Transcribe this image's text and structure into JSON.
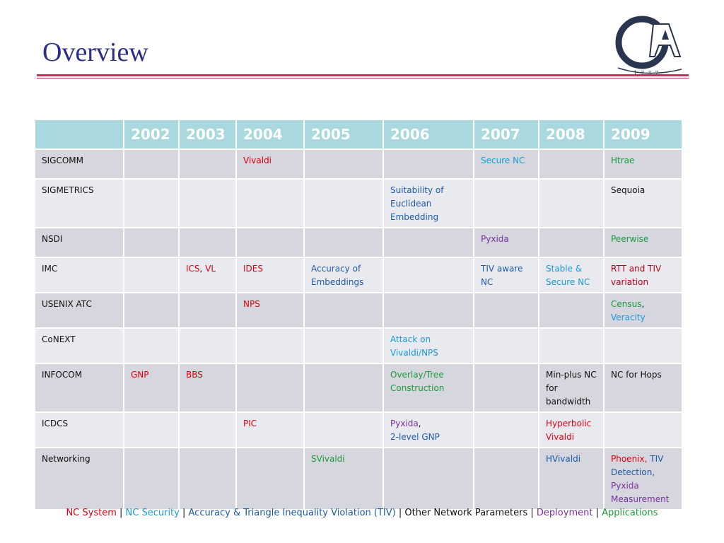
{
  "slide": {
    "title": "Overview"
  },
  "logo": {
    "letters": "GA",
    "year": "1737"
  },
  "colors": {
    "nc_system": "#e10010",
    "nc_security": "#1a9ad6",
    "accuracy_tiv": "#1e5aa8",
    "other_params": "#111111",
    "deployment": "#7a2ea0",
    "applications": "#1d9a3c",
    "header_bg": "#a9d8df",
    "rule": "#c8305a",
    "title": "#2d2e88"
  },
  "table": {
    "years": [
      "2002",
      "2003",
      "2004",
      "2005",
      "2006",
      "2007",
      "2008",
      "2009"
    ],
    "rows": [
      {
        "venue": "SIGCOMM",
        "cells": [
          [],
          [],
          [
            {
              "t": "Vivaldi",
              "c": "red"
            }
          ],
          [],
          [],
          [
            {
              "t": "Secure NC",
              "c": "cyan"
            }
          ],
          [],
          [
            {
              "t": "Htrae",
              "c": "green"
            }
          ]
        ]
      },
      {
        "venue": "SIGMETRICS",
        "cells": [
          [],
          [],
          [],
          [],
          [
            {
              "t": "Suitability of Euclidean Embedding",
              "c": "blue"
            }
          ],
          [],
          [],
          [
            {
              "t": "Sequoia",
              "c": "black"
            }
          ]
        ]
      },
      {
        "venue": "NSDI",
        "cells": [
          [],
          [],
          [],
          [],
          [],
          [
            {
              "t": "Pyxida",
              "c": "purple"
            }
          ],
          [],
          [
            {
              "t": "Peerwise",
              "c": "green"
            }
          ]
        ]
      },
      {
        "venue": "IMC",
        "cells": [
          [],
          [
            {
              "t": "ICS",
              "c": "red"
            },
            {
              "t": ", ",
              "c": "black"
            },
            {
              "t": "VL",
              "c": "red"
            }
          ],
          [
            {
              "t": "IDES",
              "c": "red"
            }
          ],
          [
            {
              "t": "Accuracy of Embeddings",
              "c": "blue"
            }
          ],
          [],
          [
            {
              "t": "TIV aware NC",
              "c": "blue"
            }
          ],
          [
            {
              "t": "Stable & Secure NC",
              "c": "cyan"
            }
          ],
          [
            {
              "t": "RTT and TIV variation",
              "c": "dred"
            }
          ]
        ]
      },
      {
        "venue": "USENIX ATC",
        "cells": [
          [],
          [],
          [
            {
              "t": "NPS",
              "c": "red"
            }
          ],
          [],
          [],
          [],
          [],
          [
            {
              "t": "Census",
              "c": "green"
            },
            {
              "t": ",",
              "c": "black"
            },
            {
              "br": true
            },
            {
              "t": "Veracity",
              "c": "cyan"
            }
          ]
        ]
      },
      {
        "venue": "CoNEXT",
        "cells": [
          [],
          [],
          [],
          [],
          [
            {
              "t": "Attack on Vivaldi/NPS",
              "c": "cyan"
            }
          ],
          [],
          [],
          []
        ]
      },
      {
        "venue": "INFOCOM",
        "cells": [
          [
            {
              "t": "GNP",
              "c": "red"
            }
          ],
          [
            {
              "t": "BBS",
              "c": "red"
            }
          ],
          [],
          [],
          [
            {
              "t": "Overlay/Tree Construction",
              "c": "green"
            }
          ],
          [],
          [
            {
              "t": "Min-plus NC for bandwidth",
              "c": "black"
            }
          ],
          [
            {
              "t": "NC for Hops",
              "c": "black"
            }
          ]
        ]
      },
      {
        "venue": "ICDCS",
        "cells": [
          [],
          [],
          [
            {
              "t": "PIC",
              "c": "red"
            }
          ],
          [],
          [
            {
              "t": "Pyxida",
              "c": "purple"
            },
            {
              "t": ",",
              "c": "black"
            },
            {
              "br": true
            },
            {
              "t": "2-level GNP",
              "c": "blue"
            }
          ],
          [],
          [
            {
              "t": "Hyperbolic Vivaldi",
              "c": "red"
            }
          ],
          []
        ]
      },
      {
        "venue": "Networking",
        "cells": [
          [],
          [],
          [],
          [
            {
              "t": "SVivaldi",
              "c": "green"
            }
          ],
          [],
          [],
          [
            {
              "t": "HVivaldi",
              "c": "blue"
            }
          ],
          [
            {
              "t": "Phoenix, ",
              "c": "red"
            },
            {
              "t": "TIV Detection,",
              "c": "blue"
            },
            {
              "br": true
            },
            {
              "t": "Pyxida Measurement",
              "c": "purple"
            }
          ]
        ]
      }
    ]
  },
  "legend": [
    {
      "t": "NC System",
      "c": "red"
    },
    {
      "t": " | ",
      "c": "black"
    },
    {
      "t": "NC Security",
      "c": "cyan"
    },
    {
      "t": " | ",
      "c": "black"
    },
    {
      "t": "Accuracy & Triangle Inequality Violation (TIV)",
      "c": "blue"
    },
    {
      "t": " | ",
      "c": "black"
    },
    {
      "t": "Other Network Parameters",
      "c": "black"
    },
    {
      "t": " | ",
      "c": "black"
    },
    {
      "t": "Deployment",
      "c": "purple"
    },
    {
      "t": " | ",
      "c": "black"
    },
    {
      "t": "Applications",
      "c": "green"
    }
  ]
}
